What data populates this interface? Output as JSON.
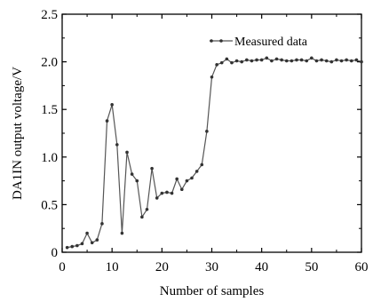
{
  "chart_data": {
    "type": "line",
    "xlabel": "Number of samples",
    "ylabel": "DA1IN output voltage/V",
    "xlim": [
      0,
      60
    ],
    "ylim": [
      0,
      2.5
    ],
    "xticks": [
      "0",
      "10",
      "20",
      "30",
      "40",
      "50",
      "60"
    ],
    "yticks": [
      "0",
      "0.5",
      "1.0",
      "1.5",
      "2.0",
      "2.5"
    ],
    "grid": false,
    "legend_position": "top-right",
    "colors": {
      "line": "#555555",
      "marker": "#333333",
      "axis": "#000000"
    },
    "series": [
      {
        "name": "Measured data",
        "x": [
          1,
          2,
          3,
          4,
          5,
          6,
          7,
          8,
          9,
          10,
          11,
          12,
          13,
          14,
          15,
          16,
          17,
          18,
          19,
          20,
          21,
          22,
          23,
          24,
          25,
          26,
          27,
          28,
          29,
          30,
          31,
          32,
          33,
          34,
          35,
          36,
          37,
          38,
          39,
          40,
          41,
          42,
          43,
          44,
          45,
          46,
          47,
          48,
          49,
          50,
          51,
          52,
          53,
          54,
          55,
          56,
          57,
          58,
          59,
          60
        ],
        "y": [
          0.05,
          0.06,
          0.07,
          0.09,
          0.2,
          0.1,
          0.13,
          0.3,
          1.38,
          1.55,
          1.13,
          0.2,
          1.05,
          0.82,
          0.75,
          0.37,
          0.45,
          0.88,
          0.57,
          0.62,
          0.63,
          0.62,
          0.77,
          0.66,
          0.75,
          0.78,
          0.85,
          0.92,
          1.27,
          1.84,
          1.97,
          1.99,
          2.03,
          1.99,
          2.01,
          2.0,
          2.02,
          2.01,
          2.02,
          2.02,
          2.04,
          2.01,
          2.03,
          2.02,
          2.01,
          2.01,
          2.02,
          2.02,
          2.01,
          2.04,
          2.01,
          2.02,
          2.01,
          2.0,
          2.02,
          2.01,
          2.02,
          2.01,
          2.02,
          2.0
        ]
      }
    ]
  }
}
